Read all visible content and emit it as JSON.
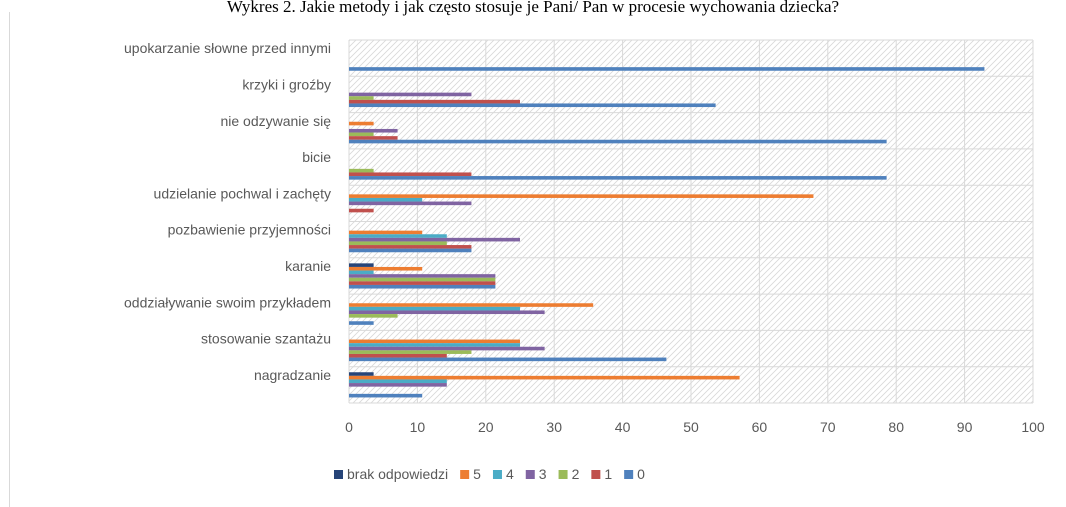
{
  "chart_data": {
    "type": "bar",
    "orientation": "horizontal",
    "title": "Wykres 2. Jakie metody i jak często stosuje je Pani/ Pan w procesie wychowania dziecka?",
    "xlim": [
      0,
      100
    ],
    "x_ticks": [
      "0",
      "10",
      "20",
      "30",
      "40",
      "50",
      "60",
      "70",
      "80",
      "90",
      "100"
    ],
    "categories": [
      "upokarzanie słowne przed innymi",
      "krzyki i groźby",
      "nie odzywanie się",
      "bicie",
      "udzielanie pochwal i zachęty",
      "pozbawienie przyjemności",
      "karanie",
      "oddziaływanie swoim przykładem",
      "stosowanie szantażu",
      "nagradzanie"
    ],
    "series": [
      {
        "name": "brak odpowiedzi",
        "color": "#264478",
        "values": [
          0,
          0,
          0,
          0,
          0,
          0,
          3.6,
          0,
          0,
          3.6
        ]
      },
      {
        "name": "5",
        "color": "#ED7D31",
        "values": [
          0,
          0,
          3.6,
          0,
          67.9,
          10.7,
          10.7,
          35.7,
          25,
          57.1
        ]
      },
      {
        "name": "4",
        "color": "#4BACC6",
        "values": [
          0,
          0,
          0,
          0,
          10.7,
          14.3,
          3.6,
          25,
          25,
          14.3
        ]
      },
      {
        "name": "3",
        "color": "#8064A2",
        "values": [
          0,
          17.9,
          7.1,
          0,
          17.9,
          25,
          21.4,
          28.6,
          28.6,
          14.3
        ]
      },
      {
        "name": "2",
        "color": "#9BBB59",
        "values": [
          0,
          3.6,
          3.6,
          3.6,
          0,
          14.3,
          21.4,
          7.1,
          17.9,
          0
        ]
      },
      {
        "name": "1",
        "color": "#C0504D",
        "values": [
          0,
          25,
          7.1,
          17.9,
          3.6,
          17.9,
          21.4,
          0,
          14.3,
          0
        ]
      },
      {
        "name": "0",
        "color": "#4F81BD",
        "values": [
          92.9,
          53.6,
          78.6,
          78.6,
          0,
          17.9,
          21.4,
          3.6,
          46.4,
          10.7
        ]
      }
    ],
    "legend_position": "bottom",
    "grid": true,
    "plot_background": "diagonal-hatch",
    "colors": {
      "text": "#595959",
      "gridline": "#d9d9d9",
      "hatch": "#d9d9d9"
    }
  }
}
